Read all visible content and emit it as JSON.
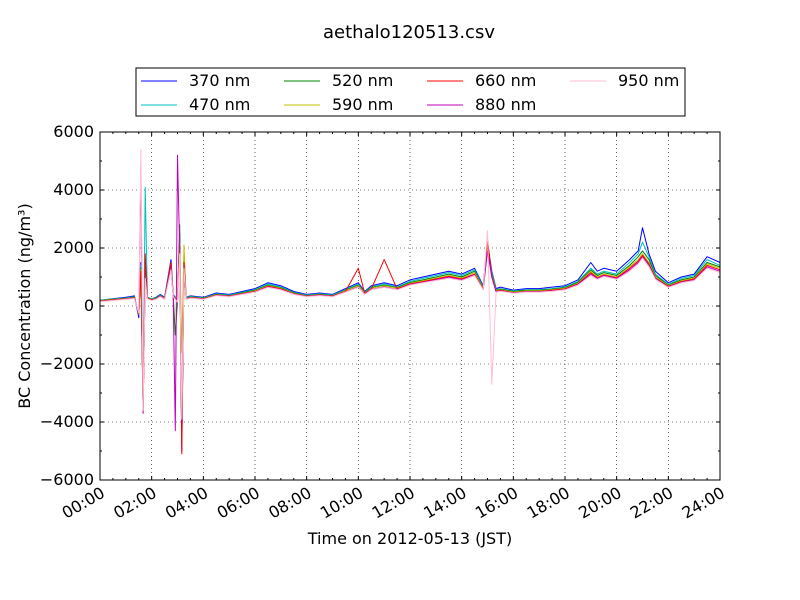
{
  "chart_data": {
    "type": "line",
    "title": "aethalo120513.csv",
    "xlabel": "Time on 2012-05-13 (JST)",
    "ylabel": "BC Concentration (ng/m³)",
    "xlim": [
      "00:00",
      "24:00"
    ],
    "ylim": [
      -6000,
      6000
    ],
    "x_ticks": [
      "00:00",
      "02:00",
      "04:00",
      "06:00",
      "08:00",
      "10:00",
      "12:00",
      "14:00",
      "16:00",
      "18:00",
      "20:00",
      "22:00",
      "24:00"
    ],
    "y_ticks": [
      -6000,
      -4000,
      -2000,
      0,
      2000,
      4000,
      6000
    ],
    "grid": true,
    "legend_position": "top",
    "x": [
      "00:00",
      "00:30",
      "01:00",
      "01:20",
      "01:30",
      "01:35",
      "01:40",
      "01:45",
      "01:50",
      "02:00",
      "02:10",
      "02:20",
      "02:30",
      "02:45",
      "02:50",
      "02:55",
      "03:00",
      "03:05",
      "03:10",
      "03:15",
      "03:20",
      "03:30",
      "04:00",
      "04:30",
      "05:00",
      "05:30",
      "06:00",
      "06:30",
      "07:00",
      "07:30",
      "08:00",
      "08:30",
      "09:00",
      "09:30",
      "10:00",
      "10:15",
      "10:30",
      "11:00",
      "11:30",
      "12:00",
      "12:30",
      "13:00",
      "13:30",
      "14:00",
      "14:30",
      "14:50",
      "15:00",
      "15:10",
      "15:20",
      "15:30",
      "16:00",
      "16:30",
      "17:00",
      "17:30",
      "18:00",
      "18:30",
      "19:00",
      "19:15",
      "19:30",
      "20:00",
      "20:30",
      "20:50",
      "21:00",
      "21:15",
      "21:30",
      "22:00",
      "22:30",
      "23:00",
      "23:30",
      "24:00"
    ],
    "series": [
      {
        "name": "370 nm",
        "color": "#0000ff",
        "values": [
          200,
          250,
          300,
          350,
          -400,
          1500,
          -3600,
          1200,
          300,
          250,
          300,
          400,
          300,
          1600,
          400,
          300,
          200,
          2500,
          -5000,
          1800,
          300,
          350,
          300,
          450,
          400,
          500,
          600,
          800,
          700,
          500,
          400,
          450,
          400,
          600,
          800,
          500,
          700,
          800,
          700,
          900,
          1000,
          1100,
          1200,
          1100,
          1300,
          700,
          2200,
          1200,
          600,
          650,
          550,
          600,
          600,
          650,
          700,
          900,
          1500,
          1200,
          1300,
          1200,
          1600,
          1900,
          2700,
          1800,
          1200,
          800,
          1000,
          1100,
          1700,
          1500
        ]
      },
      {
        "name": "470 nm",
        "color": "#00bfbf",
        "values": [
          200,
          240,
          280,
          320,
          -300,
          1400,
          -3500,
          4100,
          300,
          240,
          280,
          380,
          280,
          1500,
          380,
          280,
          180,
          2300,
          -4800,
          1700,
          280,
          330,
          280,
          420,
          380,
          470,
          560,
          760,
          660,
          470,
          380,
          420,
          380,
          560,
          760,
          470,
          660,
          760,
          660,
          850,
          950,
          1050,
          1150,
          1050,
          1250,
          660,
          2100,
          1150,
          560,
          600,
          520,
          560,
          560,
          600,
          660,
          850,
          1300,
          1100,
          1200,
          1100,
          1500,
          1800,
          2200,
          1700,
          1100,
          750,
          950,
          1050,
          1600,
          1400
        ]
      },
      {
        "name": "520 nm",
        "color": "#008000",
        "values": [
          190,
          230,
          270,
          300,
          -300,
          1300,
          -3400,
          1100,
          280,
          230,
          270,
          360,
          270,
          1400,
          360,
          -1000,
          170,
          2800,
          -4700,
          1600,
          270,
          310,
          270,
          400,
          360,
          450,
          540,
          720,
          630,
          450,
          360,
          400,
          360,
          540,
          720,
          450,
          630,
          720,
          630,
          810,
          900,
          1000,
          1100,
          1000,
          1200,
          630,
          2000,
          1100,
          540,
          580,
          500,
          540,
          540,
          580,
          630,
          810,
          1250,
          1050,
          1150,
          1050,
          1400,
          1700,
          1900,
          1600,
          1050,
          720,
          900,
          1000,
          1500,
          1350
        ]
      },
      {
        "name": "590 nm",
        "color": "#bfbf00",
        "values": [
          180,
          220,
          260,
          290,
          -280,
          1250,
          -3700,
          1050,
          270,
          220,
          260,
          350,
          260,
          1350,
          350,
          260,
          160,
          2200,
          -1600,
          2100,
          260,
          300,
          260,
          390,
          350,
          430,
          520,
          700,
          610,
          430,
          350,
          390,
          350,
          520,
          700,
          430,
          610,
          700,
          610,
          780,
          870,
          960,
          1050,
          960,
          1150,
          610,
          1950,
          1050,
          520,
          560,
          480,
          520,
          520,
          560,
          610,
          780,
          1200,
          1000,
          1100,
          1000,
          1350,
          1600,
          1800,
          1500,
          1000,
          700,
          870,
          960,
          1450,
          1300
        ]
      },
      {
        "name": "660 nm",
        "color": "#ff0000",
        "values": [
          170,
          210,
          250,
          280,
          -260,
          1200,
          -3500,
          1800,
          260,
          210,
          250,
          340,
          250,
          1500,
          340,
          250,
          150,
          2100,
          -5100,
          1500,
          250,
          290,
          250,
          380,
          340,
          420,
          500,
          680,
          590,
          420,
          340,
          380,
          340,
          500,
          1300,
          420,
          590,
          1600,
          590,
          760,
          840,
          930,
          1020,
          930,
          1100,
          590,
          2300,
          1000,
          500,
          540,
          460,
          500,
          500,
          540,
          590,
          760,
          1150,
          970,
          1070,
          970,
          1300,
          1550,
          1750,
          1450,
          970,
          680,
          840,
          930,
          1400,
          1250
        ]
      },
      {
        "name": "880 nm",
        "color": "#bf00bf",
        "values": [
          160,
          200,
          240,
          270,
          -250,
          4800,
          -3700,
          1000,
          250,
          200,
          240,
          330,
          240,
          1300,
          330,
          -4300,
          5200,
          1900,
          -4000,
          1400,
          240,
          280,
          240,
          370,
          330,
          410,
          490,
          660,
          570,
          410,
          330,
          370,
          330,
          490,
          660,
          410,
          570,
          660,
          570,
          740,
          820,
          900,
          990,
          900,
          1080,
          570,
          1900,
          1000,
          490,
          520,
          450,
          490,
          490,
          520,
          570,
          740,
          1100,
          950,
          1050,
          950,
          1250,
          1500,
          1700,
          1400,
          950,
          660,
          820,
          900,
          1350,
          1200
        ]
      },
      {
        "name": "950 nm",
        "color": "#ffbfcf",
        "values": [
          150,
          190,
          230,
          260,
          -240,
          5400,
          -3600,
          950,
          240,
          190,
          230,
          320,
          230,
          1250,
          320,
          230,
          130,
          1800,
          -3900,
          1300,
          230,
          270,
          230,
          360,
          320,
          400,
          480,
          640,
          560,
          400,
          320,
          360,
          320,
          480,
          640,
          400,
          560,
          640,
          560,
          720,
          800,
          880,
          960,
          880,
          1050,
          560,
          2600,
          -2700,
          480,
          510,
          440,
          480,
          480,
          510,
          560,
          720,
          1050,
          920,
          1020,
          920,
          1200,
          1450,
          1650,
          1350,
          920,
          640,
          800,
          880,
          1300,
          1150
        ]
      }
    ]
  }
}
